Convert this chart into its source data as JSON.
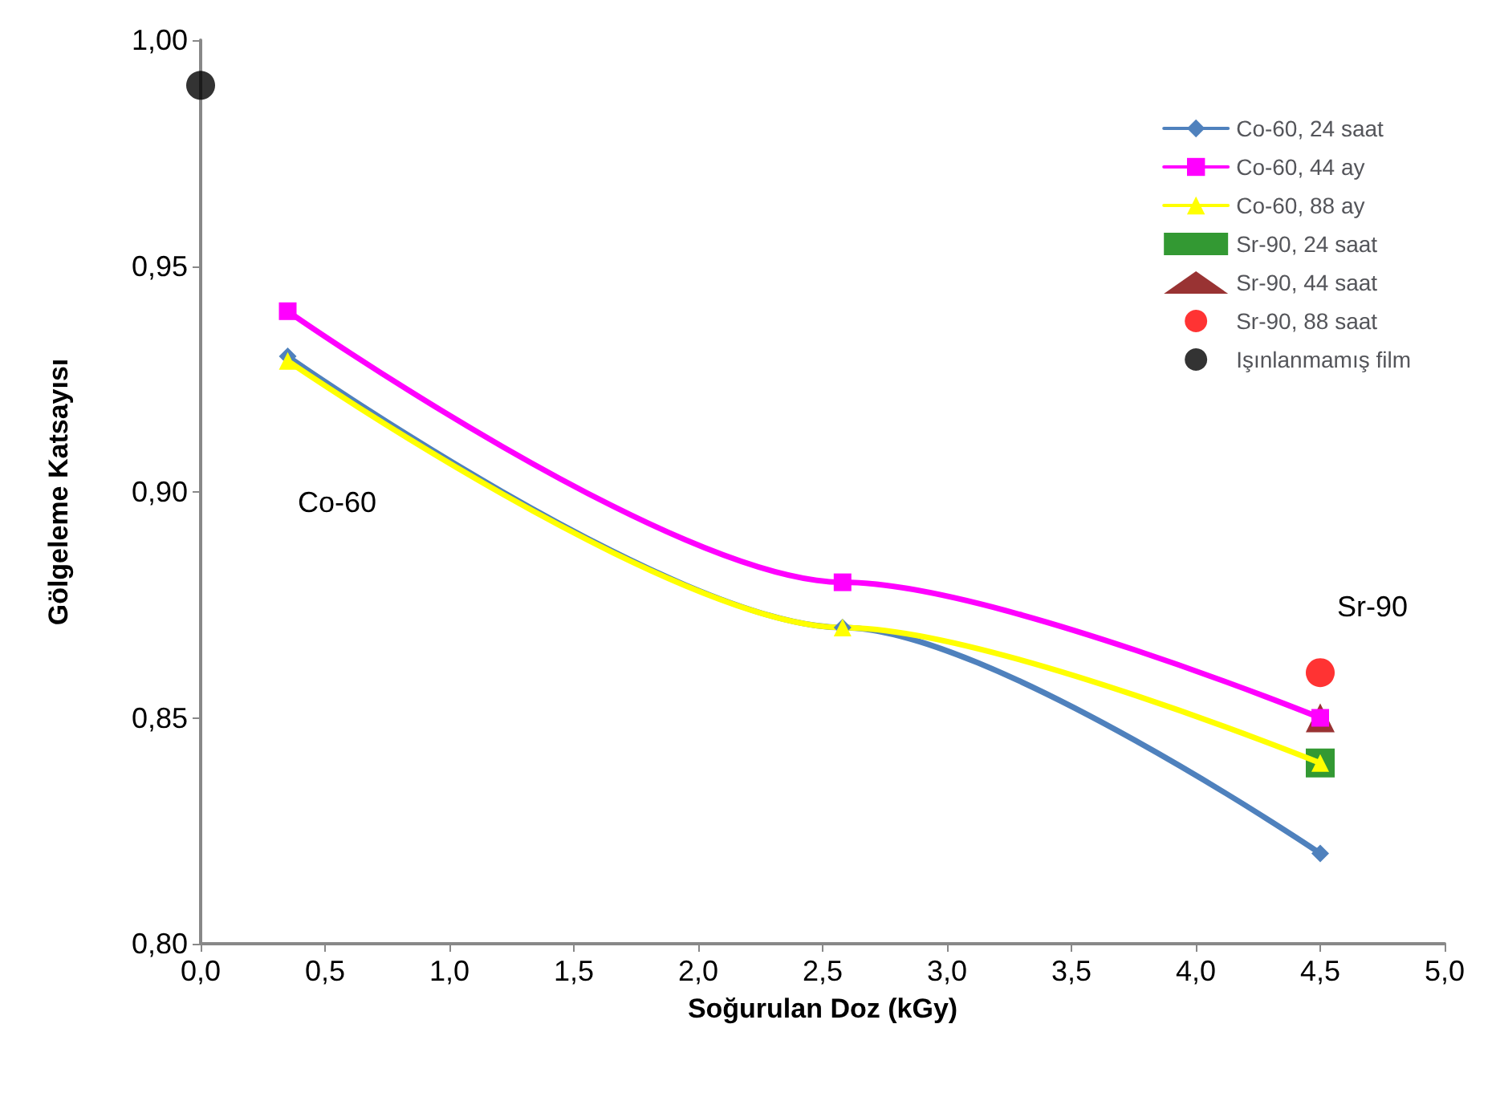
{
  "chart_data": {
    "type": "line",
    "xlabel": "Soğurulan Doz (kGy)",
    "ylabel": "Gölgeleme Katsayısı",
    "xlim": [
      0,
      5
    ],
    "ylim": [
      0.8,
      1.0
    ],
    "xticks": [
      {
        "value": 0,
        "label": "0,0"
      },
      {
        "value": 0.5,
        "label": "0,5"
      },
      {
        "value": 1,
        "label": "1,0"
      },
      {
        "value": 1.5,
        "label": "1,5"
      },
      {
        "value": 2,
        "label": "2,0"
      },
      {
        "value": 2.5,
        "label": "2,5"
      },
      {
        "value": 3,
        "label": "3,0"
      },
      {
        "value": 3.5,
        "label": "3,5"
      },
      {
        "value": 4,
        "label": "4,0"
      },
      {
        "value": 4.5,
        "label": "4,5"
      },
      {
        "value": 5,
        "label": "5,0"
      }
    ],
    "yticks": [
      {
        "value": 0.8,
        "label": "0,80"
      },
      {
        "value": 0.85,
        "label": "0,85"
      },
      {
        "value": 0.9,
        "label": "0,90"
      },
      {
        "value": 0.95,
        "label": "0,95"
      },
      {
        "value": 1.0,
        "label": "1,00"
      }
    ],
    "grid": false,
    "legend": "top right",
    "series": [
      {
        "name": "Co-60, 24 saat",
        "marker": "diamond",
        "color": "#4f81bd",
        "x": [
          0.35,
          2.58,
          4.5
        ],
        "values": [
          0.93,
          0.87,
          0.82
        ]
      },
      {
        "name": "Co-60, 44 ay",
        "marker": "square",
        "color": "#ff00ff",
        "x": [
          0.35,
          2.58,
          4.5
        ],
        "values": [
          0.94,
          0.88,
          0.85
        ]
      },
      {
        "name": "Co-60, 88 ay",
        "marker": "triangle",
        "color": "#ffff00",
        "x": [
          0.35,
          2.58,
          4.5
        ],
        "values": [
          0.929,
          0.87,
          0.84
        ]
      },
      {
        "name": "Sr-90, 24 saat",
        "type": "scatter",
        "marker": "square",
        "color": "#008000",
        "x": [
          4.5
        ],
        "values": [
          0.84
        ]
      },
      {
        "name": "Sr-90, 44 saat",
        "type": "scatter",
        "marker": "triangle",
        "color": "#800000",
        "x": [
          4.5
        ],
        "values": [
          0.85
        ]
      },
      {
        "name": "Sr-90, 88 saat",
        "type": "scatter",
        "marker": "circle",
        "color": "#ff0000",
        "x": [
          4.5
        ],
        "values": [
          0.86
        ]
      },
      {
        "name": "Işınlanmamış film",
        "type": "scatter",
        "marker": "circle",
        "color": "#000000",
        "x": [
          0
        ],
        "values": [
          0.99
        ]
      }
    ],
    "annotations": [
      "Co-60",
      "Sr-90"
    ]
  }
}
